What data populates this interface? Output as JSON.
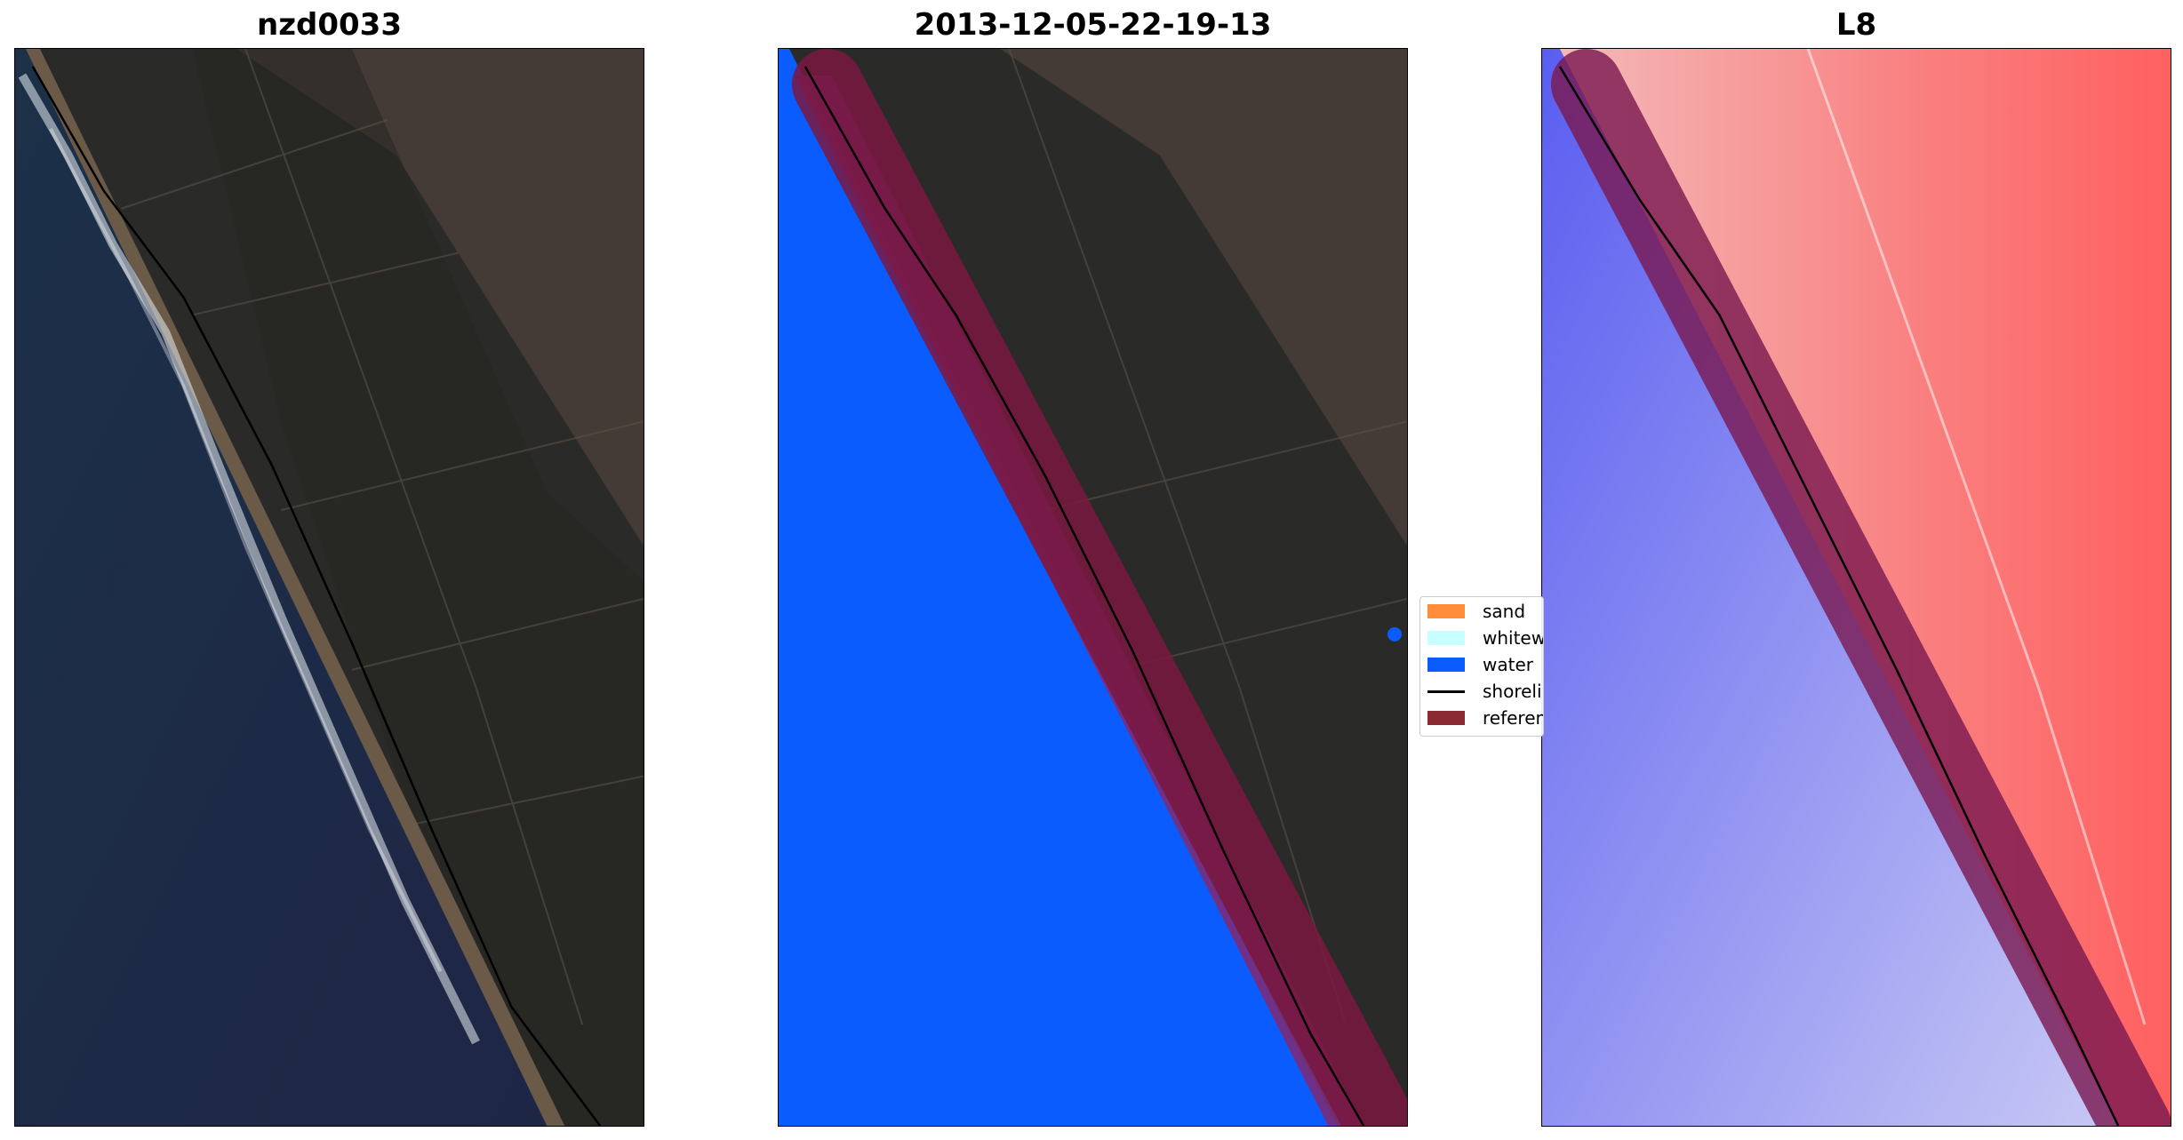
{
  "panels": [
    {
      "title": "nzd0033",
      "image": "rgb-satellite-image"
    },
    {
      "title": "2013-12-05-22-19-13",
      "image": "classified-satellite-image"
    },
    {
      "title": "L8",
      "image": "water-index-image"
    }
  ],
  "legend": {
    "items": [
      {
        "label": "sand",
        "color": "#ff8c3a"
      },
      {
        "label": "whitew",
        "color": "#c8ffff"
      },
      {
        "label": "water",
        "color": "#0a5cff"
      },
      {
        "label": "shoreli",
        "color": "#000000"
      },
      {
        "label": "referen",
        "color": "#8b2a33"
      }
    ]
  }
}
